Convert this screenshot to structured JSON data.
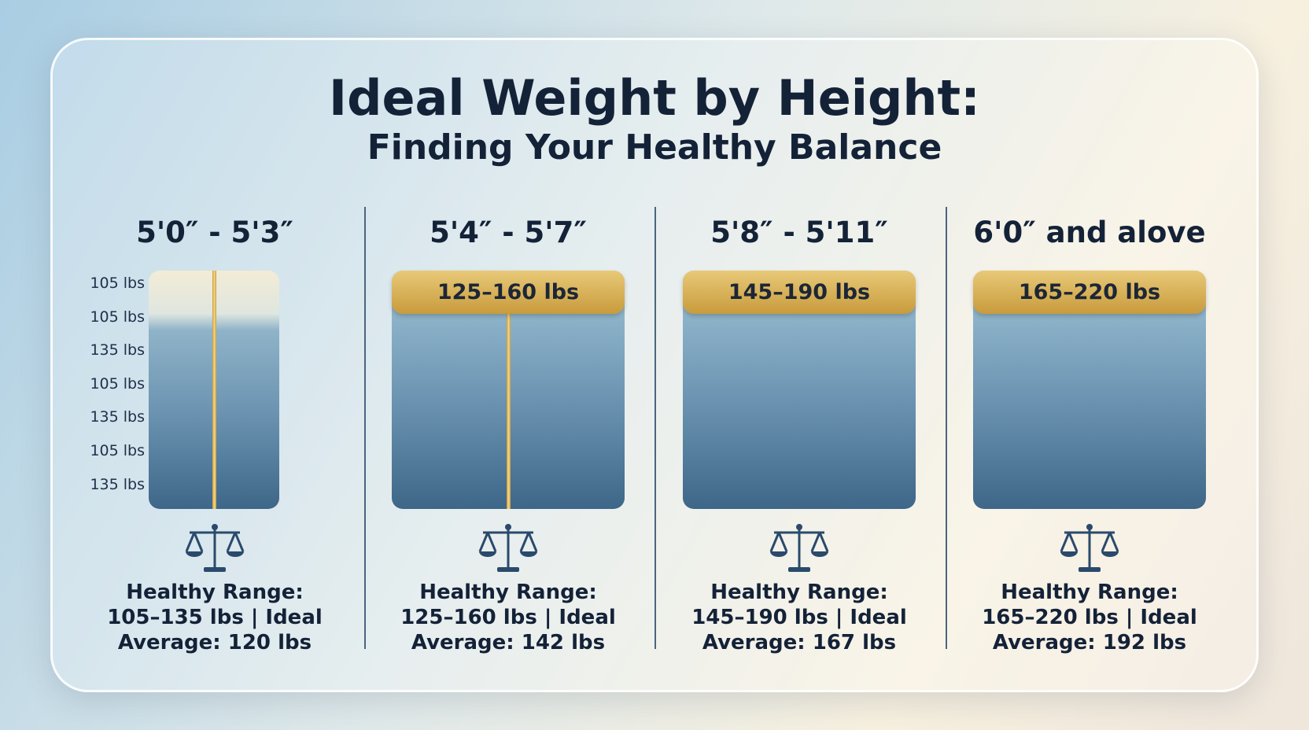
{
  "header": {
    "title": "Ideal Weight by Height:",
    "subtitle": "Finding Your Healthy Balance"
  },
  "columns": [
    {
      "heading": "5'0″ - 5'3″",
      "scale_labels": [
        "105 lbs",
        "105 lbs",
        "135 lbs",
        "105 lbs",
        "135 lbs",
        "105 lbs",
        "135 lbs"
      ],
      "lines": [
        "Healthy Range:",
        "105–135 lbs | Ideal",
        "Average: 120 lbs"
      ]
    },
    {
      "heading": "5'4″ - 5'7″",
      "badge": "125–160 lbs",
      "lines": [
        "Healthy Range:",
        "125–160 lbs | Ideal",
        "Average: 142 lbs"
      ]
    },
    {
      "heading": "5'8″ - 5'11″",
      "badge": "145–190 lbs",
      "lines": [
        "Healthy Range:",
        "145–190 lbs | Ideal",
        "Average: 167 lbs"
      ]
    },
    {
      "heading": "6'0″ and alove",
      "badge": "165–220 lbs",
      "lines": [
        "Healthy Range:",
        "165–220 lbs | Ideal",
        "Average: 192 lbs"
      ]
    }
  ]
}
